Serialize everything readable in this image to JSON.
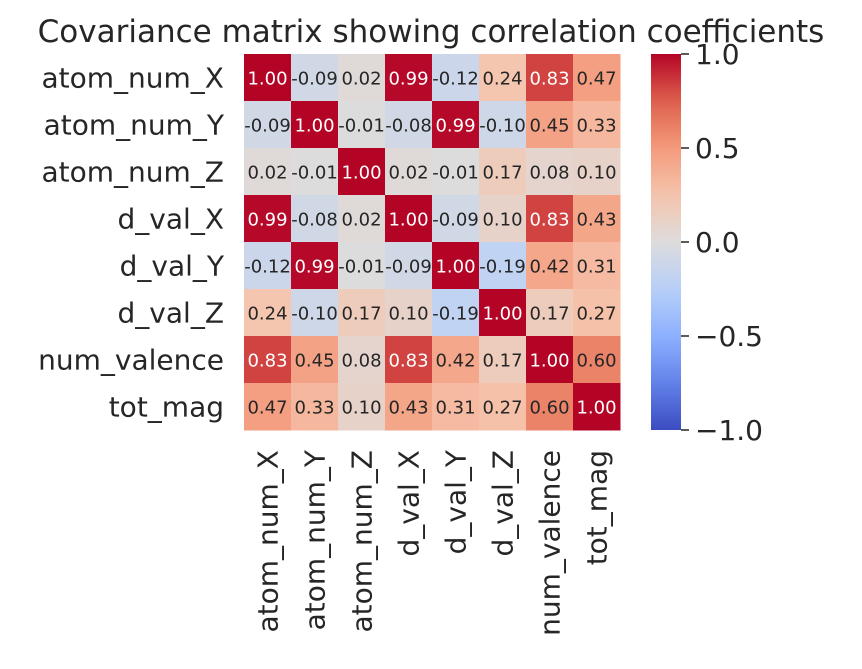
{
  "chart_data": {
    "type": "heatmap",
    "title": "Covariance matrix showing correlation coefficients",
    "rows": [
      "atom_num_X",
      "atom_num_Y",
      "atom_num_Z",
      "d_val_X",
      "d_val_Y",
      "d_val_Z",
      "num_valence",
      "tot_mag"
    ],
    "columns": [
      "atom_num_X",
      "atom_num_Y",
      "atom_num_Z",
      "d_val_X",
      "d_val_Y",
      "d_val_Z",
      "num_valence",
      "tot_mag"
    ],
    "values": [
      [
        1.0,
        -0.09,
        0.02,
        0.99,
        -0.12,
        0.24,
        0.83,
        0.47
      ],
      [
        -0.09,
        1.0,
        -0.01,
        -0.08,
        0.99,
        -0.1,
        0.45,
        0.33
      ],
      [
        0.02,
        -0.01,
        1.0,
        0.02,
        -0.01,
        0.17,
        0.08,
        0.1
      ],
      [
        0.99,
        -0.08,
        0.02,
        1.0,
        -0.09,
        0.1,
        0.83,
        0.43
      ],
      [
        -0.12,
        0.99,
        -0.01,
        -0.09,
        1.0,
        -0.19,
        0.42,
        0.31
      ],
      [
        0.24,
        -0.1,
        0.17,
        0.1,
        -0.19,
        1.0,
        0.17,
        0.27
      ],
      [
        0.83,
        0.45,
        0.08,
        0.83,
        0.42,
        0.17,
        1.0,
        0.6
      ],
      [
        0.47,
        0.33,
        0.1,
        0.43,
        0.31,
        0.27,
        0.6,
        1.0
      ]
    ],
    "colormap": "coolwarm",
    "vmin": -1.0,
    "vmax": 1.0,
    "annotation_format": "0.00",
    "colorbar": {
      "ticks": [
        1.0,
        0.5,
        0.0,
        -0.5,
        -1.0
      ],
      "tick_labels": [
        "1.0",
        "0.5",
        "0.0",
        "−0.5",
        "−1.0"
      ]
    }
  }
}
